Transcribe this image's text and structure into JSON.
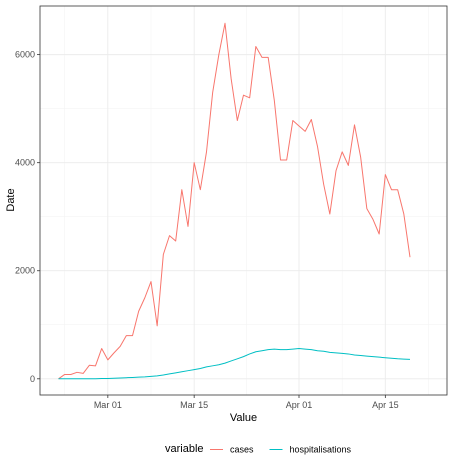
{
  "chart_data": {
    "type": "line",
    "xlabel": "Value",
    "ylabel": "Date",
    "x_start": "2020-02-22",
    "x_ticks": [
      {
        "label": "Mar 01",
        "date": "2020-03-01"
      },
      {
        "label": "Mar 15",
        "date": "2020-03-15"
      },
      {
        "label": "Apr 01",
        "date": "2020-04-01"
      },
      {
        "label": "Apr 15",
        "date": "2020-04-15"
      }
    ],
    "xlim": [
      "2020-02-19",
      "2020-04-25"
    ],
    "y_ticks": [
      0,
      2000,
      4000,
      6000
    ],
    "ylim": [
      -300,
      6900
    ],
    "grid": true,
    "legend_position": "bottom",
    "legend_title": "variable",
    "colors": {
      "cases": "#F8766D",
      "hospitalisations": "#00BFC4"
    },
    "series": [
      {
        "name": "cases",
        "values": [
          0,
          80,
          80,
          120,
          100,
          250,
          240,
          560,
          350,
          480,
          600,
          800,
          800,
          1250,
          1500,
          1800,
          980,
          2300,
          2650,
          2550,
          3500,
          2820,
          4000,
          3500,
          4200,
          5300,
          6000,
          6580,
          5550,
          4780,
          5250,
          5200,
          6150,
          5950,
          5950,
          5150,
          4050,
          4050,
          4780,
          4680,
          4580,
          4800,
          4300,
          3600,
          3050,
          3850,
          4200,
          3950,
          4700,
          4100,
          3150,
          2950,
          2680,
          3780,
          3500,
          3500,
          3050,
          2250
        ]
      },
      {
        "name": "hospitalisations",
        "values": [
          0,
          0,
          0,
          0,
          0,
          0,
          0,
          5,
          5,
          10,
          15,
          20,
          25,
          30,
          35,
          45,
          55,
          70,
          90,
          110,
          130,
          150,
          170,
          190,
          220,
          240,
          260,
          290,
          330,
          370,
          410,
          460,
          500,
          520,
          540,
          550,
          540,
          540,
          550,
          560,
          550,
          540,
          520,
          510,
          490,
          480,
          470,
          460,
          440,
          430,
          420,
          410,
          400,
          390,
          380,
          370,
          365,
          360
        ]
      }
    ]
  }
}
